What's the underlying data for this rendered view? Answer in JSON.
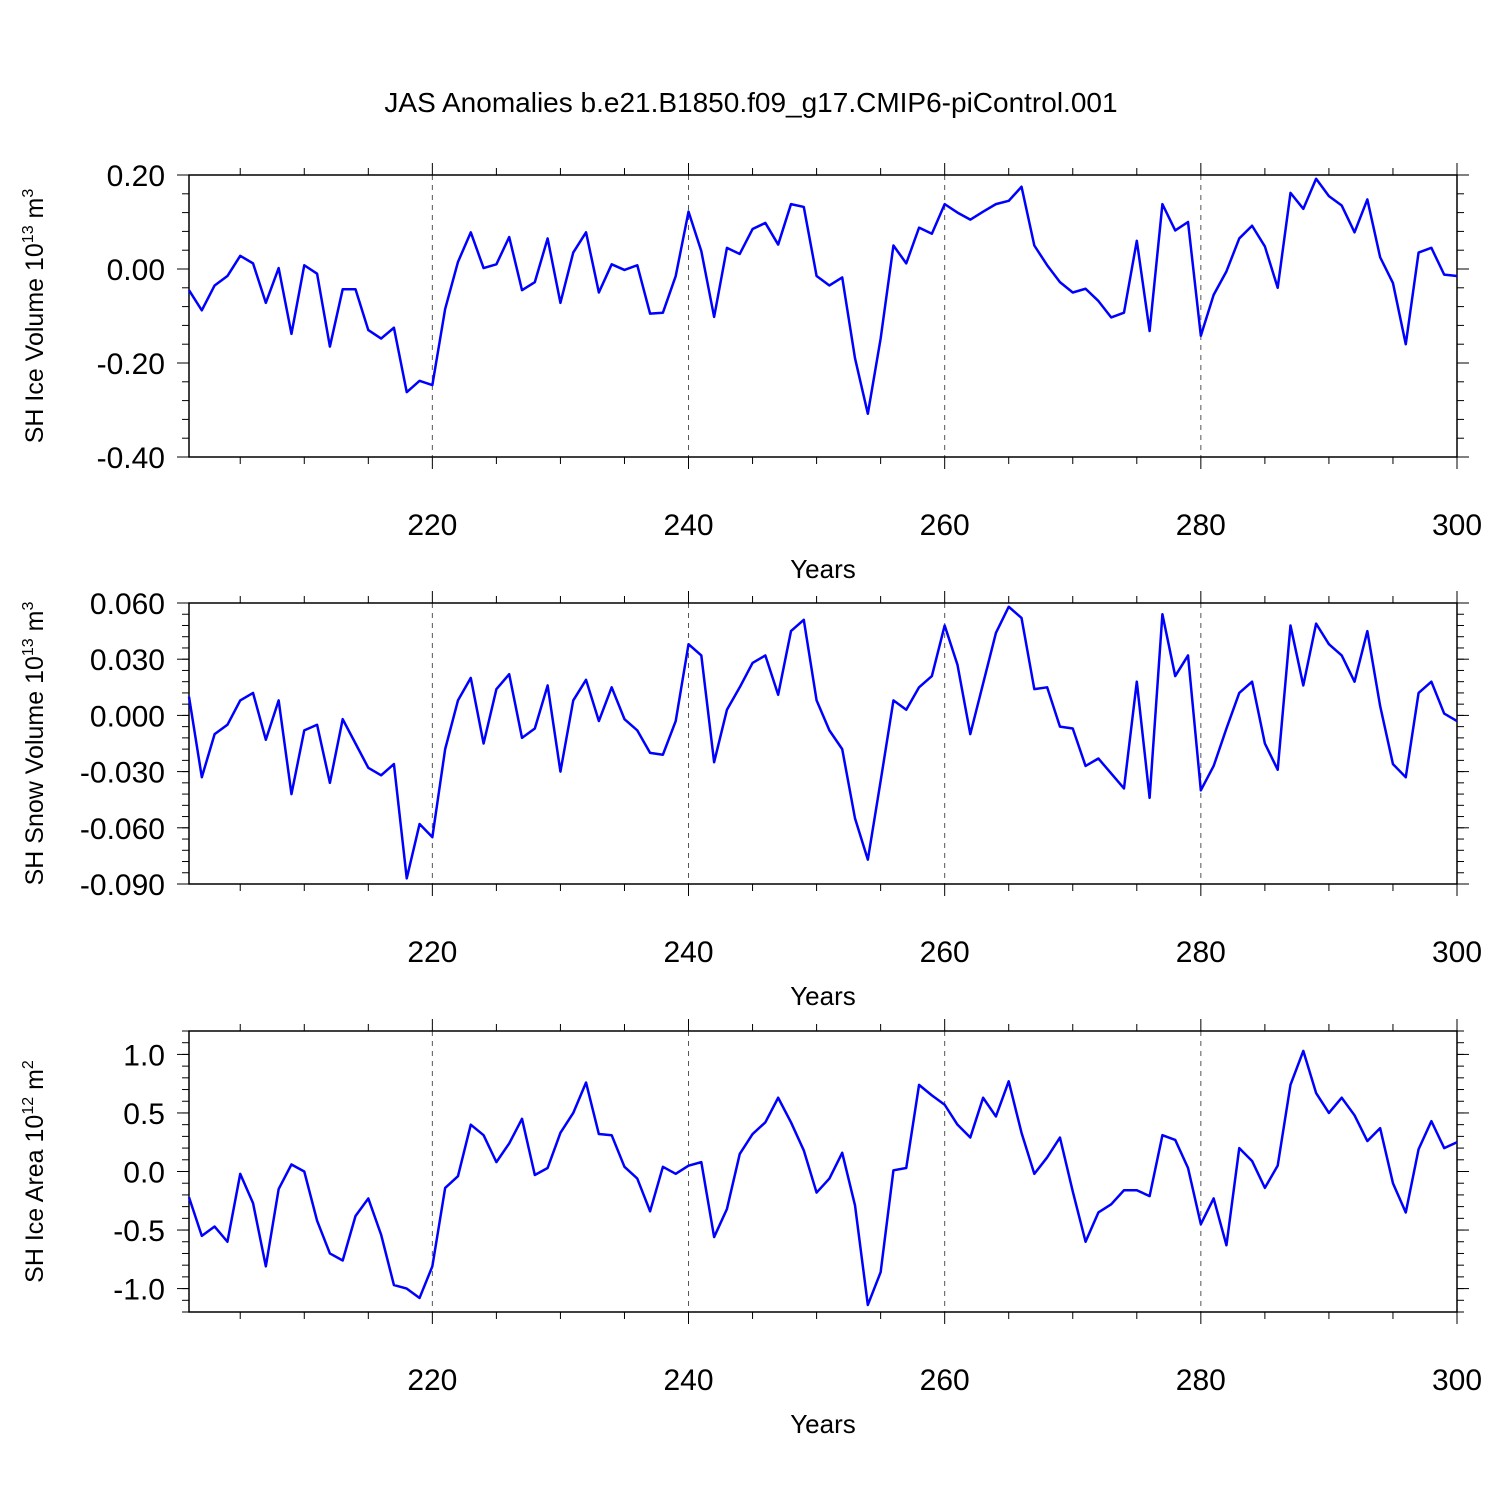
{
  "title": "JAS Anomalies b.e21.B1850.f09_g17.CMIP6-piControl.001",
  "chart_data": [
    {
      "type": "line",
      "ylabel_main": "SH Ice Volume 10",
      "ylabel_exp": "13",
      "ylabel_unit": " m",
      "ylabel_unit_exp": "3",
      "xlabel": "Years",
      "color": "#0000ff",
      "xlim": [
        201,
        300
      ],
      "ylim": [
        -0.4,
        0.2
      ],
      "yticks": [
        -0.4,
        -0.2,
        0.0,
        0.2
      ],
      "ytick_labels": [
        "-0.40",
        "-0.20",
        "0.00",
        "0.20"
      ],
      "yminor": 0.04,
      "xticks": [
        220,
        240,
        260,
        280,
        300
      ],
      "xtick_labels": [
        "220",
        "240",
        "260",
        "280",
        "300"
      ],
      "x_start": 201,
      "values": [
        -0.045,
        -0.088,
        -0.035,
        -0.015,
        0.028,
        0.012,
        -0.072,
        0.002,
        -0.138,
        0.008,
        -0.01,
        -0.165,
        -0.043,
        -0.043,
        -0.13,
        -0.148,
        -0.125,
        -0.262,
        -0.238,
        -0.247,
        -0.085,
        0.015,
        0.078,
        0.002,
        0.01,
        0.068,
        -0.045,
        -0.028,
        0.065,
        -0.072,
        0.035,
        0.078,
        -0.05,
        0.01,
        -0.002,
        0.008,
        -0.095,
        -0.093,
        -0.015,
        0.122,
        0.038,
        -0.102,
        0.045,
        0.032,
        0.085,
        0.098,
        0.052,
        0.138,
        0.132,
        -0.015,
        -0.035,
        -0.018,
        -0.19,
        -0.308,
        -0.148,
        0.05,
        0.012,
        0.088,
        0.075,
        0.138,
        0.12,
        0.105,
        0.122,
        0.138,
        0.145,
        0.175,
        0.05,
        0.008,
        -0.028,
        -0.05,
        -0.042,
        -0.068,
        -0.103,
        -0.093,
        0.06,
        -0.132,
        0.138,
        0.082,
        0.1,
        -0.142,
        -0.055,
        -0.005,
        0.065,
        0.092,
        0.048,
        -0.04,
        0.162,
        0.128,
        0.192,
        0.155,
        0.135,
        0.078,
        0.148,
        0.025,
        -0.03,
        -0.16,
        0.035,
        0.045,
        -0.012,
        -0.015
      ]
    },
    {
      "type": "line",
      "ylabel_main": "SH Snow Volume 10",
      "ylabel_exp": "13",
      "ylabel_unit": " m",
      "ylabel_unit_exp": "3",
      "xlabel": "Years",
      "color": "#0000ff",
      "xlim": [
        201,
        300
      ],
      "ylim": [
        -0.09,
        0.06
      ],
      "yticks": [
        -0.09,
        -0.06,
        -0.03,
        0.0,
        0.03,
        0.06
      ],
      "ytick_labels": [
        "-0.090",
        "-0.060",
        "-0.030",
        "0.000",
        "0.030",
        "0.060"
      ],
      "yminor": 0.006,
      "xticks": [
        220,
        240,
        260,
        280,
        300
      ],
      "xtick_labels": [
        "220",
        "240",
        "260",
        "280",
        "300"
      ],
      "x_start": 201,
      "values": [
        0.01,
        -0.033,
        -0.01,
        -0.005,
        0.008,
        0.012,
        -0.013,
        0.008,
        -0.042,
        -0.008,
        -0.005,
        -0.036,
        -0.002,
        -0.015,
        -0.028,
        -0.032,
        -0.026,
        -0.087,
        -0.058,
        -0.065,
        -0.018,
        0.008,
        0.02,
        -0.015,
        0.014,
        0.022,
        -0.012,
        -0.007,
        0.016,
        -0.03,
        0.008,
        0.019,
        -0.003,
        0.015,
        -0.002,
        -0.008,
        -0.02,
        -0.021,
        -0.003,
        0.038,
        0.032,
        -0.025,
        0.003,
        0.015,
        0.028,
        0.032,
        0.011,
        0.045,
        0.051,
        0.008,
        -0.008,
        -0.018,
        -0.055,
        -0.077,
        -0.035,
        0.008,
        0.003,
        0.015,
        0.021,
        0.048,
        0.027,
        -0.01,
        0.017,
        0.044,
        0.058,
        0.052,
        0.014,
        0.015,
        -0.006,
        -0.007,
        -0.027,
        -0.023,
        -0.031,
        -0.039,
        0.018,
        -0.044,
        0.054,
        0.021,
        0.032,
        -0.04,
        -0.027,
        -0.007,
        0.012,
        0.018,
        -0.015,
        -0.029,
        0.048,
        0.016,
        0.049,
        0.038,
        0.032,
        0.018,
        0.045,
        0.005,
        -0.026,
        -0.033,
        0.012,
        0.018,
        0.001,
        -0.003
      ]
    },
    {
      "type": "line",
      "ylabel_main": "SH Ice Area 10",
      "ylabel_exp": "12",
      "ylabel_unit": " m",
      "ylabel_unit_exp": "2",
      "xlabel": "Years",
      "color": "#0000ff",
      "xlim": [
        201,
        300
      ],
      "ylim": [
        -1.2,
        1.2
      ],
      "yticks": [
        -1.0,
        -0.5,
        0.0,
        0.5,
        1.0
      ],
      "ytick_labels": [
        "-1.0",
        "-0.5",
        "0.0",
        "0.5",
        "1.0"
      ],
      "yminor": 0.1,
      "xticks": [
        220,
        240,
        260,
        280,
        300
      ],
      "xtick_labels": [
        "220",
        "240",
        "260",
        "280",
        "300"
      ],
      "x_start": 201,
      "values": [
        -0.22,
        -0.55,
        -0.47,
        -0.6,
        -0.02,
        -0.27,
        -0.81,
        -0.15,
        0.06,
        0.0,
        -0.42,
        -0.7,
        -0.76,
        -0.38,
        -0.23,
        -0.54,
        -0.97,
        -1.0,
        -1.08,
        -0.81,
        -0.14,
        -0.04,
        0.4,
        0.31,
        0.08,
        0.24,
        0.45,
        -0.03,
        0.03,
        0.33,
        0.5,
        0.76,
        0.32,
        0.31,
        0.04,
        -0.06,
        -0.34,
        0.04,
        -0.02,
        0.05,
        0.08,
        -0.56,
        -0.32,
        0.15,
        0.32,
        0.42,
        0.63,
        0.42,
        0.18,
        -0.18,
        -0.06,
        0.16,
        -0.29,
        -1.14,
        -0.86,
        0.01,
        0.03,
        0.74,
        0.65,
        0.57,
        0.4,
        0.29,
        0.63,
        0.47,
        0.77,
        0.33,
        -0.02,
        0.12,
        0.29,
        -0.17,
        -0.6,
        -0.35,
        -0.28,
        -0.16,
        -0.16,
        -0.21,
        0.31,
        0.27,
        0.03,
        -0.45,
        -0.23,
        -0.63,
        0.2,
        0.09,
        -0.14,
        0.05,
        0.74,
        1.03,
        0.67,
        0.5,
        0.63,
        0.48,
        0.26,
        0.37,
        -0.1,
        -0.35,
        0.19,
        0.43,
        0.2,
        0.25
      ]
    }
  ]
}
